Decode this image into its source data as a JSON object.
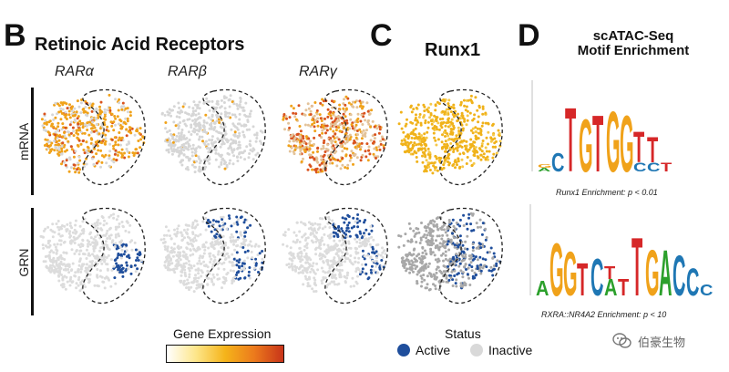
{
  "panels": {
    "b": {
      "letter": "B",
      "title": "Retinoic Acid Receptors",
      "genes": [
        "RARα",
        "RARβ",
        "RARγ"
      ]
    },
    "c": {
      "letter": "C",
      "title": "Runx1"
    },
    "d": {
      "letter": "D",
      "title_line1": "scATAC-Seq",
      "title_line2": "Motif Enrichment"
    }
  },
  "rows": {
    "mrna": "mRNA",
    "grn": "GRN"
  },
  "motifs": [
    {
      "caption": "Runx1 Enrichment: p < 0.01",
      "consensus": "TGTGGTT"
    },
    {
      "caption": "RXRA::NR4A2 Enrichment: p < 10",
      "consensus": "GGTCATTGACC"
    }
  ],
  "legend": {
    "gene_expression_title": "Gene Expression",
    "status_title": "Status",
    "active_label": "Active",
    "inactive_label": "Inactive",
    "active_color": "#1f4e9c",
    "inactive_color": "#d9d9d9"
  },
  "watermark": {
    "text": "伯豪生物",
    "icon": "wechat-icon"
  },
  "colors": {
    "orange": "#f0a21a",
    "red_orange": "#d9531e",
    "blue": "#1f4e9c",
    "gray": "#d6d6d6"
  }
}
